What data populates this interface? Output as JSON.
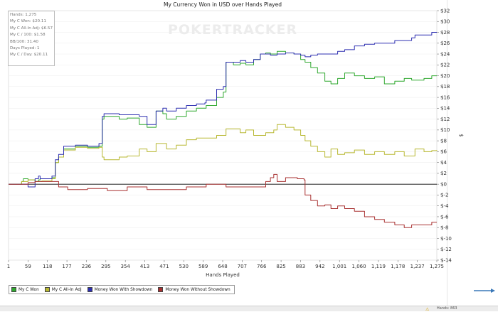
{
  "chart_data": {
    "type": "line",
    "title": "My Currency Won in USD over Hands Played",
    "xlabel": "Hands Played",
    "ylabel": "$",
    "x_ticks": [
      "1",
      "59",
      "118",
      "177",
      "236",
      "295",
      "354",
      "413",
      "471",
      "530",
      "589",
      "648",
      "707",
      "766",
      "825",
      "883",
      "942",
      "1,001",
      "1,060",
      "1,119",
      "1,178",
      "1,237",
      "1,275"
    ],
    "xlim": [
      1,
      1275
    ],
    "ylim": [
      -14,
      32
    ],
    "y_ticks": [
      "$32",
      "$30",
      "$28",
      "$26",
      "$24",
      "$22",
      "$20",
      "$18",
      "$16",
      "$14",
      "$12",
      "$10",
      "$8",
      "$6",
      "$4",
      "$2",
      "$0",
      "$-2",
      "$-4",
      "$-6",
      "$-8",
      "$-10",
      "$-12",
      "$-14"
    ],
    "y_tick_values": [
      32,
      30,
      28,
      26,
      24,
      22,
      20,
      18,
      16,
      14,
      12,
      10,
      8,
      6,
      4,
      2,
      0,
      -2,
      -4,
      -6,
      -8,
      -10,
      -12,
      -14
    ],
    "watermark": "POKERTRACKER",
    "series": [
      {
        "name": "My C Won",
        "color": "#2fa82f",
        "x": [
          1,
          40,
          45,
          59,
          80,
          90,
          95,
          130,
          140,
          150,
          165,
          177,
          200,
          236,
          270,
          280,
          285,
          295,
          330,
          354,
          390,
          400,
          413,
          440,
          460,
          471,
          500,
          530,
          560,
          585,
          589,
          620,
          640,
          648,
          670,
          690,
          707,
          730,
          750,
          766,
          780,
          800,
          825,
          850,
          870,
          883,
          900,
          920,
          942,
          960,
          980,
          1001,
          1030,
          1060,
          1090,
          1119,
          1150,
          1178,
          1200,
          1237,
          1260,
          1275
        ],
        "y": [
          0,
          0.5,
          1,
          0.8,
          0.5,
          0.8,
          1,
          1.2,
          4,
          5,
          6.5,
          6.5,
          7,
          6.8,
          7,
          12,
          12.5,
          12.5,
          12,
          12.2,
          11,
          11,
          10.5,
          13.5,
          13,
          12,
          12.5,
          13.5,
          14,
          14,
          14.5,
          16,
          17,
          22.5,
          22,
          22.3,
          22,
          23,
          24,
          24.2,
          24,
          24.5,
          24.2,
          24,
          23,
          22.5,
          21.5,
          20.5,
          19,
          18.5,
          19.5,
          20.5,
          20,
          19.5,
          19.8,
          18.5,
          19,
          19.5,
          19.2,
          19.5,
          20,
          20
        ]
      },
      {
        "name": "My C All-In Adj",
        "color": "#b8b832",
        "x": [
          1,
          40,
          59,
          80,
          100,
          130,
          140,
          150,
          165,
          177,
          200,
          236,
          270,
          280,
          285,
          295,
          330,
          354,
          390,
          413,
          440,
          471,
          500,
          530,
          560,
          589,
          620,
          648,
          690,
          707,
          730,
          766,
          790,
          800,
          825,
          850,
          870,
          883,
          900,
          920,
          942,
          960,
          980,
          1001,
          1030,
          1060,
          1090,
          1119,
          1150,
          1178,
          1210,
          1237,
          1260,
          1275
        ],
        "y": [
          0,
          0.5,
          0.8,
          0.5,
          0.6,
          1,
          4,
          5,
          6.3,
          6.3,
          6.8,
          6.6,
          6.8,
          5,
          4.5,
          4.5,
          5,
          5.2,
          6.5,
          6,
          7.5,
          6.5,
          7.2,
          8.2,
          8.5,
          8.5,
          9,
          10.2,
          9.5,
          10,
          9,
          9.5,
          10,
          11,
          10.5,
          10,
          9,
          8,
          7,
          6,
          5,
          6.5,
          5.5,
          5.8,
          6.3,
          5.5,
          6,
          5.5,
          6,
          5.2,
          6.5,
          6,
          6.2,
          6.3
        ]
      },
      {
        "name": "Money Won With Showdown",
        "color": "#2d2fb0",
        "x": [
          1,
          40,
          59,
          80,
          90,
          95,
          130,
          140,
          150,
          165,
          177,
          200,
          236,
          270,
          280,
          285,
          295,
          330,
          354,
          390,
          400,
          413,
          440,
          460,
          471,
          500,
          530,
          560,
          585,
          589,
          620,
          640,
          648,
          670,
          690,
          707,
          730,
          750,
          766,
          780,
          800,
          825,
          850,
          870,
          883,
          900,
          920,
          942,
          960,
          980,
          1001,
          1030,
          1060,
          1090,
          1119,
          1150,
          1178,
          1200,
          1210,
          1237,
          1260,
          1275
        ],
        "y": [
          0,
          0,
          -0.5,
          1,
          1.5,
          1,
          1.5,
          4.5,
          5.5,
          7,
          7,
          7.2,
          7,
          7.5,
          12.5,
          13,
          13,
          12.8,
          12.8,
          12.5,
          12.5,
          11,
          13.5,
          14,
          13.5,
          14,
          14.5,
          14.8,
          15,
          15.5,
          17.5,
          18,
          22.5,
          22.5,
          22.8,
          22.5,
          23,
          24,
          24,
          23.8,
          24,
          24.2,
          24,
          23.8,
          23.5,
          23.8,
          24,
          24,
          24,
          24.5,
          24.8,
          25.5,
          25.8,
          26,
          26,
          26.5,
          26.5,
          27,
          27.5,
          27.5,
          28,
          28
        ]
      },
      {
        "name": "Money Won Without Showdown",
        "color": "#a83030",
        "x": [
          1,
          40,
          59,
          80,
          118,
          150,
          177,
          236,
          295,
          354,
          413,
          471,
          530,
          589,
          648,
          707,
          766,
          780,
          790,
          800,
          825,
          860,
          880,
          883,
          900,
          920,
          942,
          960,
          980,
          1001,
          1030,
          1060,
          1090,
          1119,
          1150,
          1178,
          1200,
          1237,
          1260,
          1275
        ],
        "y": [
          0,
          0,
          0.3,
          0.5,
          0.5,
          -0.5,
          -1,
          -0.8,
          -1.2,
          -0.5,
          -1,
          -1,
          -0.5,
          0,
          -0.5,
          -0.5,
          0.5,
          1.2,
          1.8,
          0.5,
          1.2,
          1,
          0.8,
          -2,
          -3,
          -4,
          -3.8,
          -4.5,
          -4,
          -4.5,
          -5,
          -6,
          -6.5,
          -7,
          -7.5,
          -8,
          -7.5,
          -7.5,
          -7,
          -7
        ]
      }
    ]
  },
  "stats_box": {
    "hands": "Hands: 1,275",
    "won": "My C Won: $20.11",
    "allin": "My C All-In Adj: $6.57",
    "per100": "My C / 100: $1.58",
    "bb100": "BB/100: 31.40",
    "days": "Days Played: 1",
    "perday": "My C / Day: $20.11"
  },
  "legend": {
    "items": [
      {
        "label": "My C Won",
        "color": "#2fa82f"
      },
      {
        "label": "My C All-In Adj",
        "color": "#b8b832"
      },
      {
        "label": "Money Won With Showdown",
        "color": "#2d2fb0"
      },
      {
        "label": "Money Won Without Showdown",
        "color": "#a83030"
      }
    ]
  },
  "statusbar": {
    "text": "Hands: 863"
  }
}
